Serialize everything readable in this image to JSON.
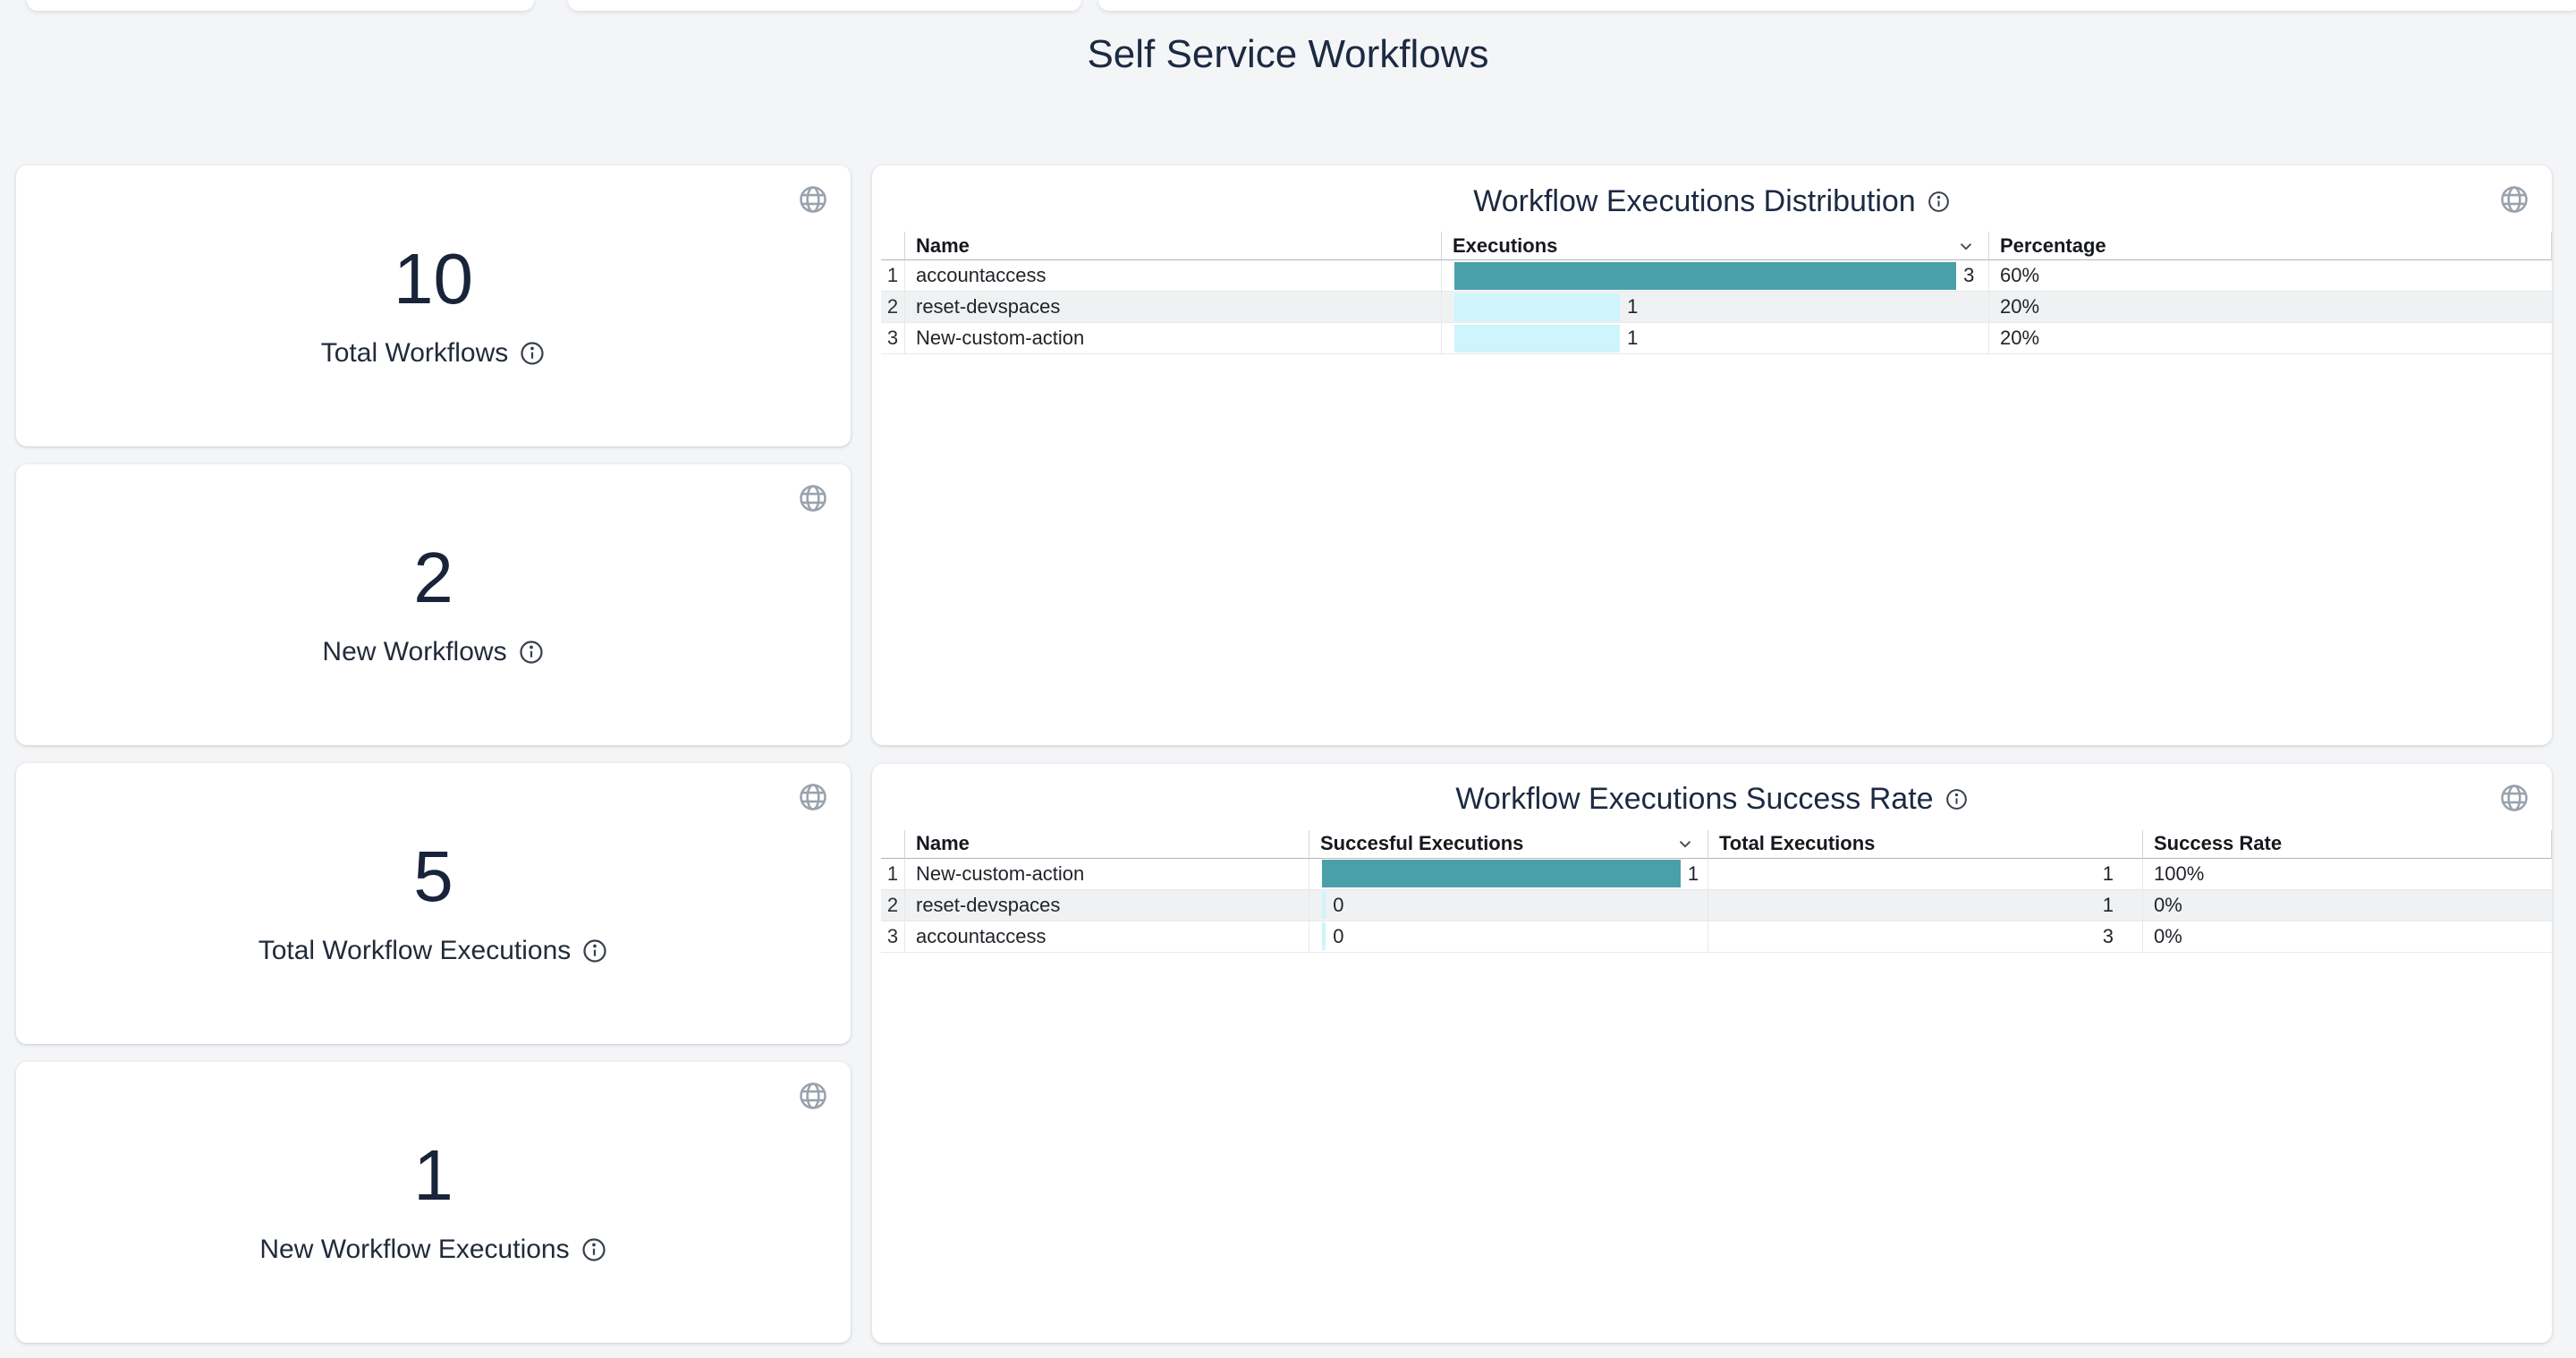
{
  "page": {
    "title": "Self Service Workflows"
  },
  "colors": {
    "accent_teal": "#4AA0A9",
    "accent_cyan": "#CDF5FB",
    "zebra_row": "#F0F1F2",
    "heading_navy": "#1C2A42",
    "icon_gray": "#9AA2AD"
  },
  "stat_cards": [
    {
      "value": "10",
      "label": "Total Workflows"
    },
    {
      "value": "2",
      "label": "New Workflows"
    },
    {
      "value": "5",
      "label": "Total Workflow Executions"
    },
    {
      "value": "1",
      "label": "New Workflow Executions"
    }
  ],
  "tables": [
    {
      "title": "Workflow Executions Distribution",
      "columns": {
        "name": "Name",
        "executions": "Executions",
        "percentage": "Percentage"
      },
      "sorted_by": "executions",
      "rows": [
        {
          "index": "1",
          "name": "accountaccess",
          "bar_value": "3",
          "bar_pct": 94,
          "bar_color": "#4AA0A9",
          "percentage": "60%"
        },
        {
          "index": "2",
          "name": "reset-devspaces",
          "bar_value": "1",
          "bar_pct": 31,
          "bar_color": "#CDF5FB",
          "percentage": "20%"
        },
        {
          "index": "3",
          "name": "New-custom-action",
          "bar_value": "1",
          "bar_pct": 31,
          "bar_color": "#CDF5FB",
          "percentage": "20%"
        }
      ]
    },
    {
      "title": "Workflow Executions Success Rate",
      "columns": {
        "name": "Name",
        "successful": "Succesful Executions",
        "total": "Total Executions",
        "rate": "Success Rate"
      },
      "sorted_by": "successful",
      "rows": [
        {
          "index": "1",
          "name": "New-custom-action",
          "bar_value": "1",
          "bar_pct": 93,
          "bar_color": "#4AA0A9",
          "total": "1",
          "rate": "100%"
        },
        {
          "index": "2",
          "name": "reset-devspaces",
          "bar_value": "0",
          "bar_pct": 1,
          "bar_color": "#CDF5FB",
          "total": "1",
          "rate": "0%"
        },
        {
          "index": "3",
          "name": "accountaccess",
          "bar_value": "0",
          "bar_pct": 1,
          "bar_color": "#CDF5FB",
          "total": "3",
          "rate": "0%"
        }
      ]
    }
  ]
}
